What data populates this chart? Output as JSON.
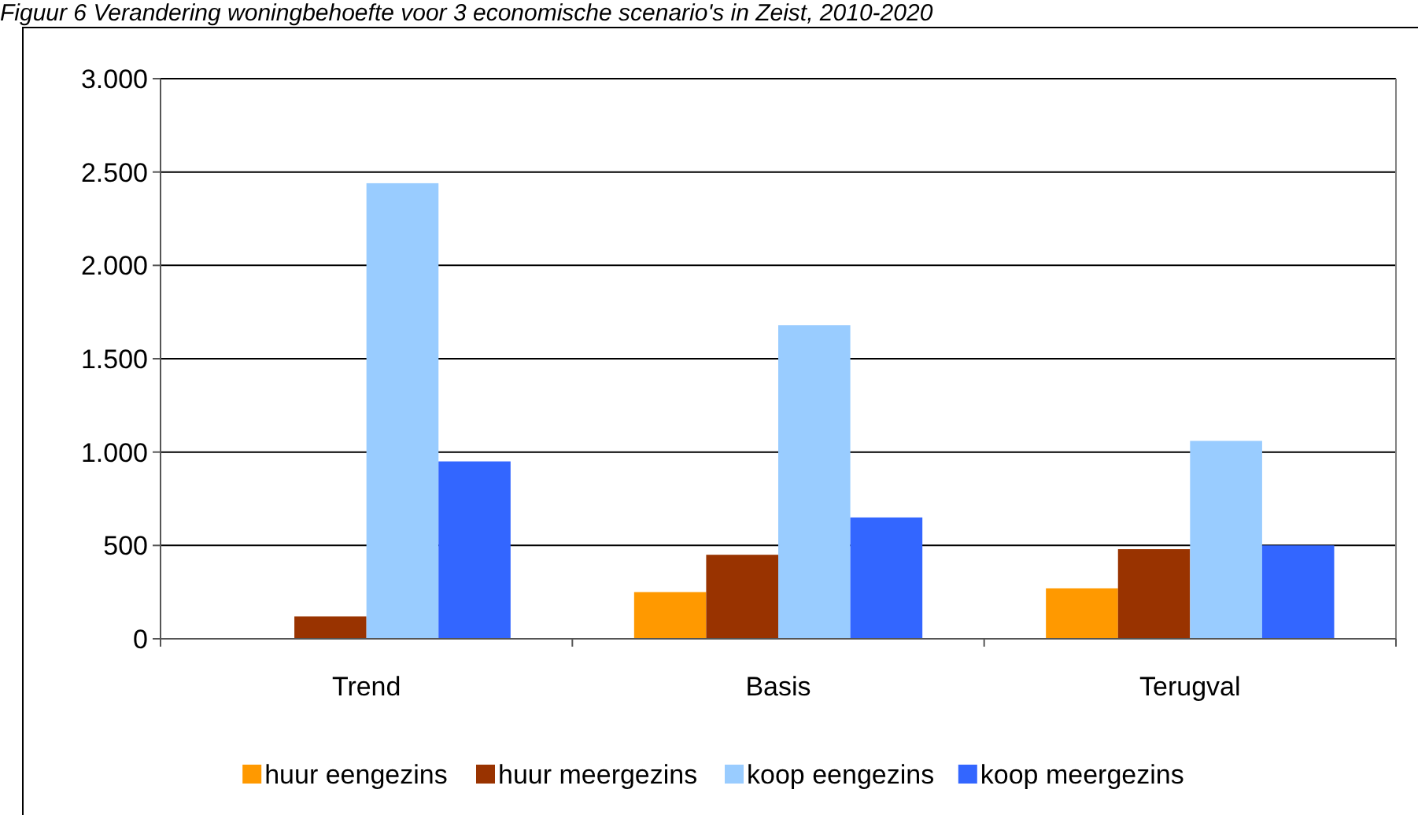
{
  "chart_data": {
    "type": "bar",
    "title": "Figuur 6 Verandering woningbehoefte voor 3 economische scenario's in Zeist, 2010-2020",
    "categories": [
      "Trend",
      "Basis",
      "Terugval"
    ],
    "series": [
      {
        "name": "huur eengezins",
        "color": "#ff9900",
        "values": [
          0,
          250,
          270
        ]
      },
      {
        "name": "huur meergezins",
        "color": "#993300",
        "values": [
          120,
          450,
          480
        ]
      },
      {
        "name": "koop eengezins",
        "color": "#99ccff",
        "values": [
          2440,
          1680,
          1060
        ]
      },
      {
        "name": "koop meergezins",
        "color": "#3366ff",
        "values": [
          950,
          650,
          500
        ]
      }
    ],
    "ylim": [
      0,
      3000
    ],
    "yticks": [
      0,
      500,
      {
        "value": 1000,
        "label": "1.000"
      },
      {
        "value": 1500,
        "label": "1.500"
      },
      {
        "value": 2000,
        "label": "2.000"
      },
      {
        "value": 2500,
        "label": "2.500"
      },
      {
        "value": 3000,
        "label": "3.000"
      }
    ],
    "grid": "y",
    "legend": "bottom"
  }
}
